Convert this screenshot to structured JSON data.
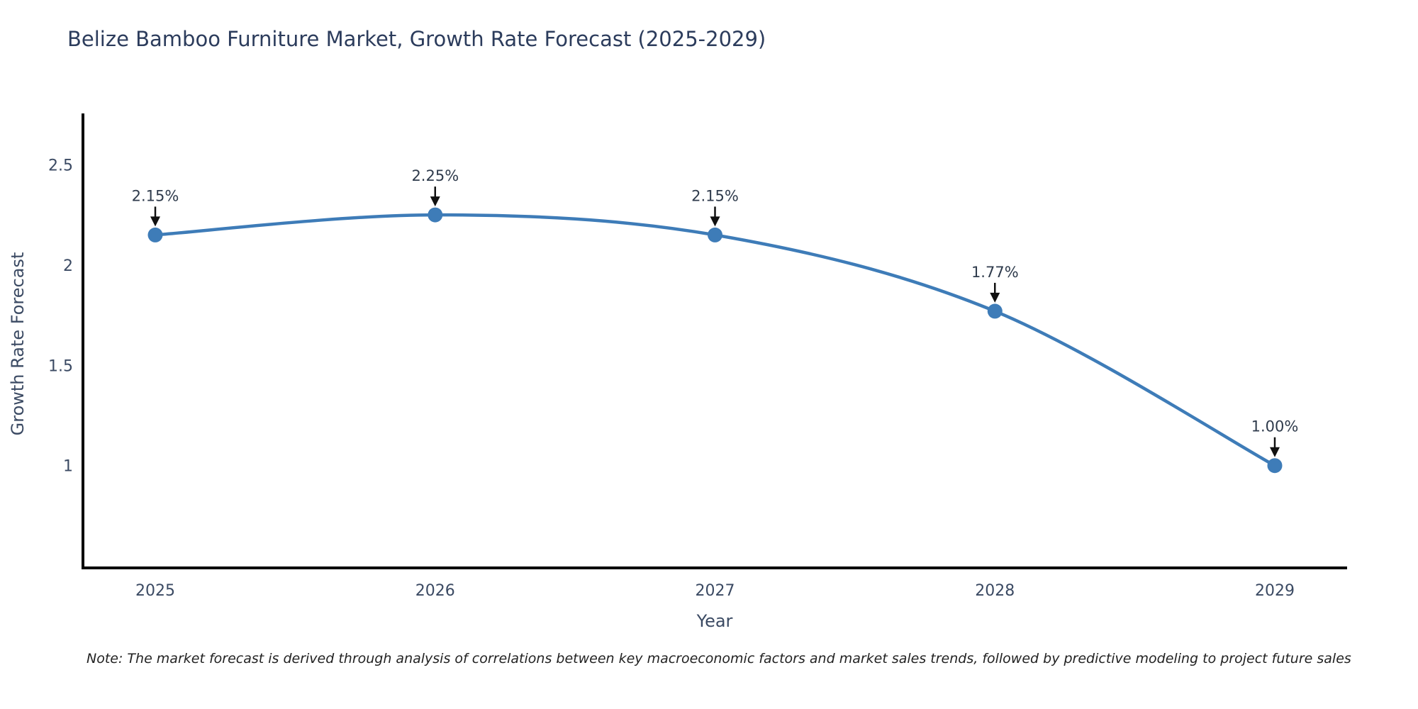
{
  "title": "Belize Bamboo Furniture Market, Growth Rate Forecast (2025-2029)",
  "note": "Note: The market forecast is derived through analysis of correlations between key macroeconomic factors and market sales trends, followed by predictive modeling to project future sales",
  "chart_data": {
    "type": "line",
    "title": "Belize Bamboo Furniture Market, Growth Rate Forecast (2025-2029)",
    "xlabel": "Year",
    "ylabel": "Growth Rate Forecast",
    "x": [
      "2025",
      "2026",
      "2027",
      "2028",
      "2029"
    ],
    "values": [
      2.15,
      2.25,
      2.15,
      1.77,
      1.0
    ],
    "point_labels": [
      "2.15%",
      "2.25%",
      "2.15%",
      "1.77%",
      "1.00%"
    ],
    "yticks": [
      1,
      1.5,
      2,
      2.5
    ],
    "ytick_labels": [
      "1",
      "1.5",
      "2",
      "2.5"
    ],
    "ylim": [
      0.49,
      2.756
    ],
    "line_shape": "spline",
    "grid": false,
    "legend": "none",
    "colors": {
      "line": "#3e7cb8",
      "marker": "#3e7cb8",
      "axis": "#000000",
      "tick_text": "#3b4a63",
      "title_text": "#2c3c5c",
      "annotation_text": "#2f3b4c",
      "arrow": "#111111",
      "background": "#ffffff"
    }
  }
}
